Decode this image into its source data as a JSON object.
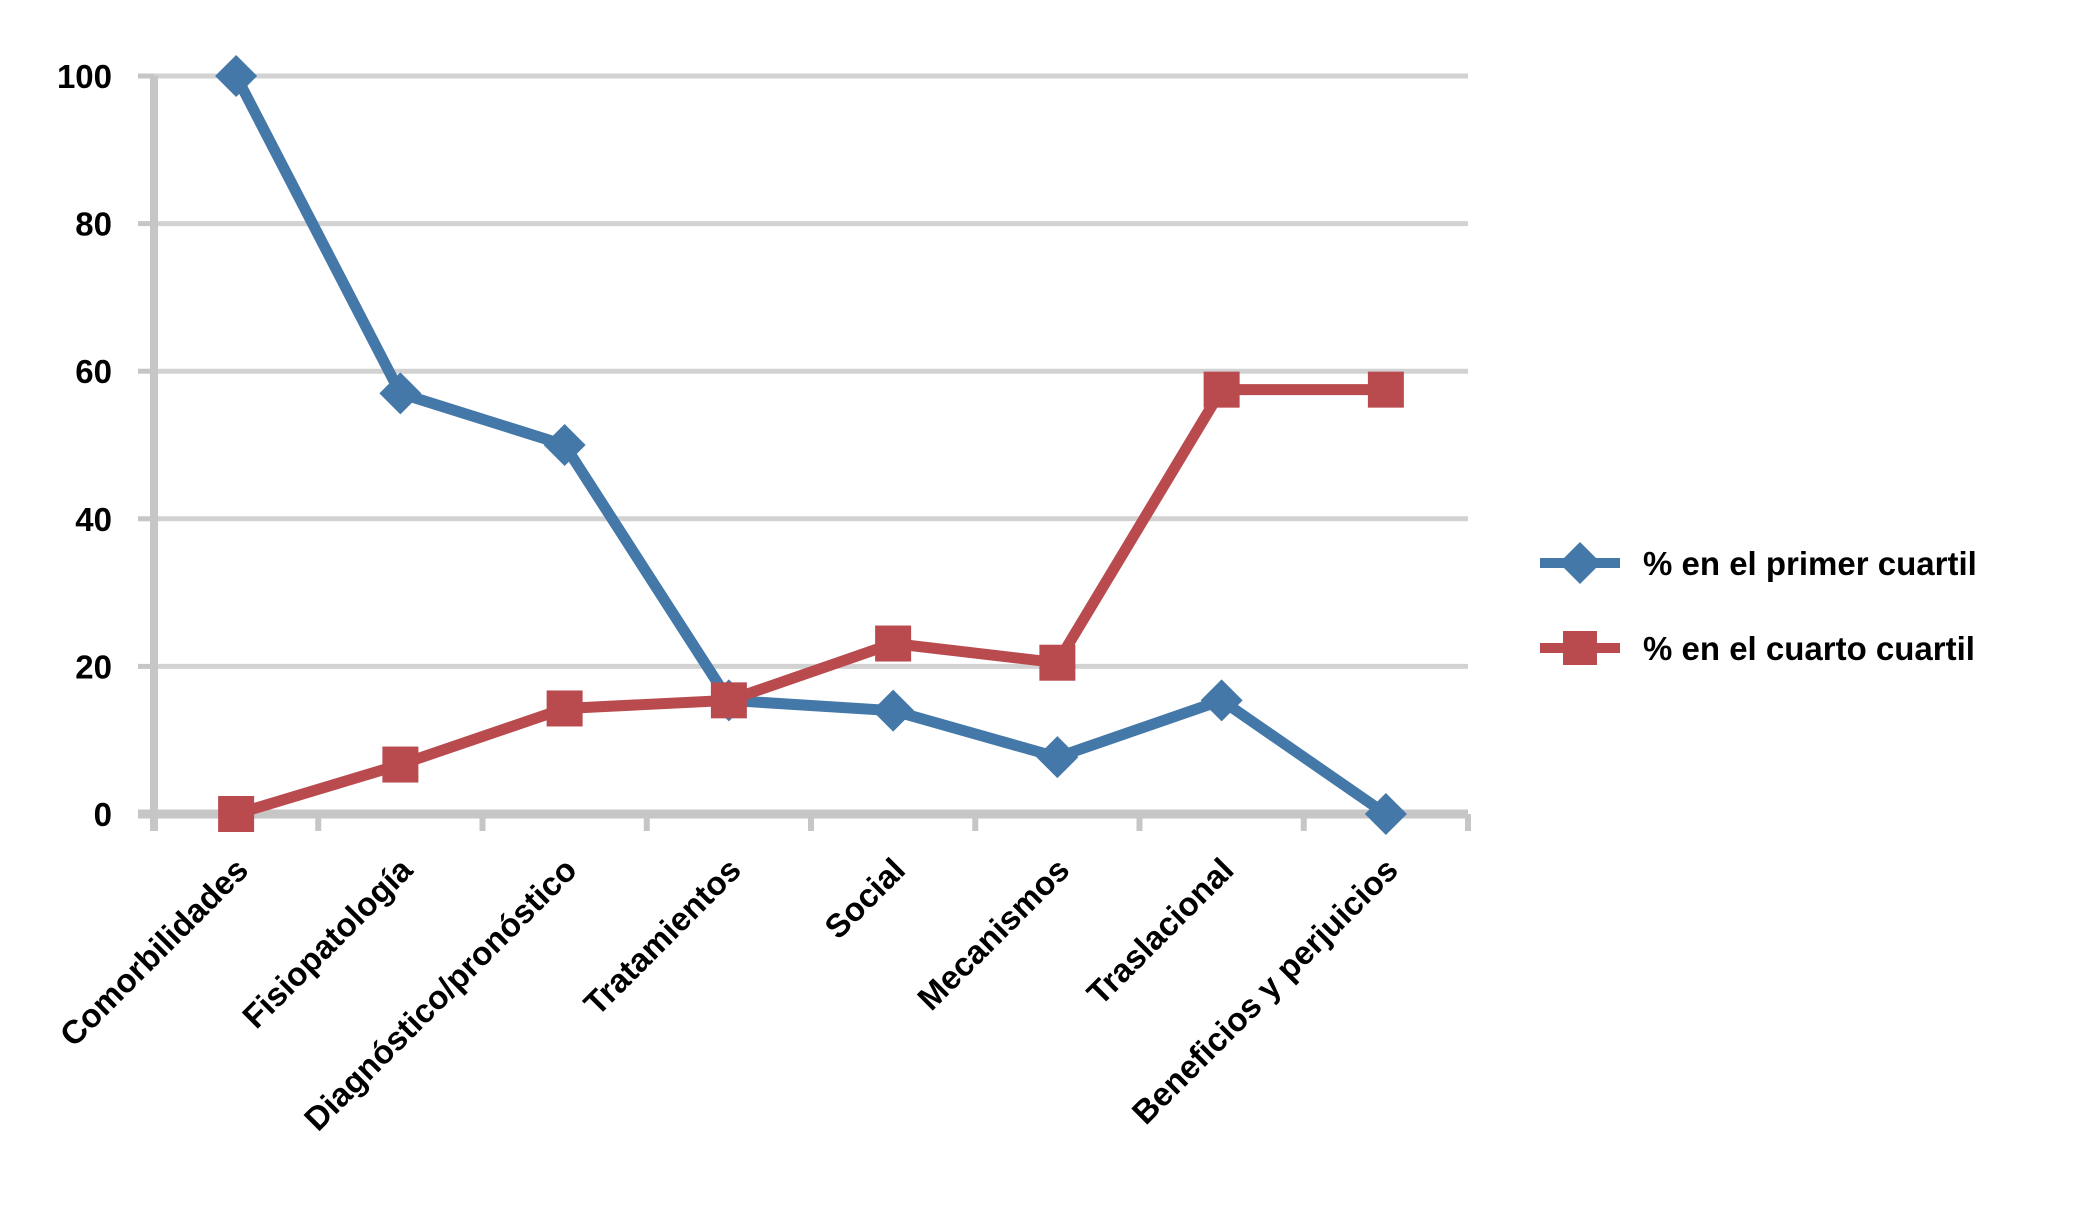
{
  "chart_data": {
    "type": "line",
    "categories": [
      "Comorbilidades",
      "Fisiopatología",
      "Diagnóstico/pronóstico",
      "Tratamientos",
      "Social",
      "Mecanismos",
      "Traslacional",
      "Beneficios y perjuicios"
    ],
    "series": [
      {
        "id": "primer-cuartil",
        "name": "% en el primer cuartil",
        "color": "#4478A8",
        "marker": "diamond",
        "values": [
          100,
          57,
          50,
          15.4,
          14,
          7.7,
          15.4,
          0
        ]
      },
      {
        "id": "cuarto-cuartil",
        "name": "% en el cuarto cuartil",
        "color": "#B94B4F",
        "marker": "square",
        "values": [
          0,
          6.7,
          14.3,
          15.4,
          23.1,
          20.5,
          57.5,
          57.5
        ]
      }
    ],
    "yticks": [
      0,
      20,
      40,
      60,
      80,
      100
    ],
    "ylim": [
      0,
      100
    ],
    "grid": true,
    "legend_position": "right",
    "gridline_color": "#D2D2D2",
    "axis_color": "#C6C6C6",
    "text_color": "#000000",
    "background_color": "#FFFFFF"
  }
}
